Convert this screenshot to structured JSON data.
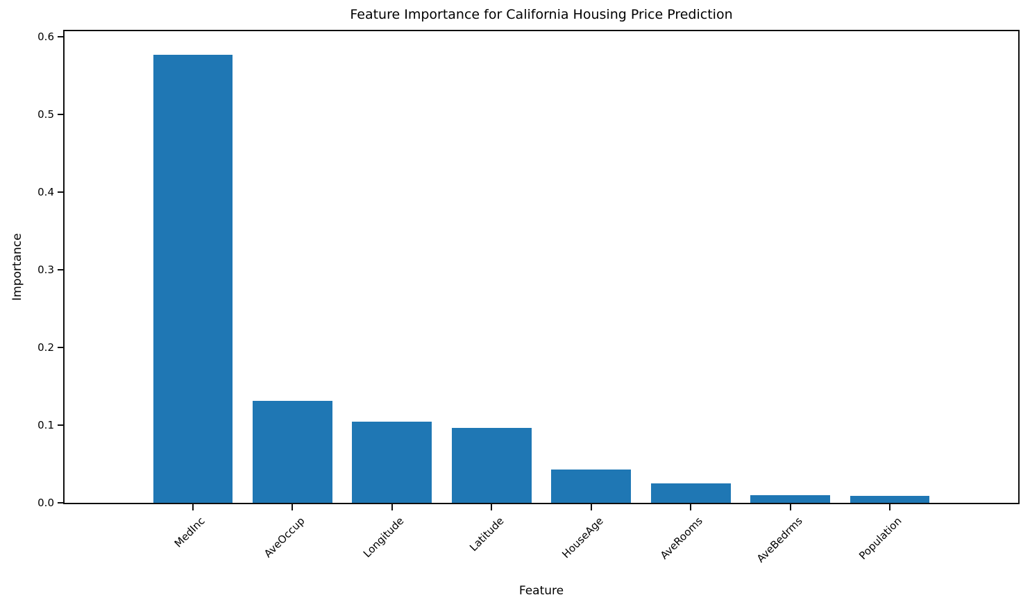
{
  "chart_data": {
    "type": "bar",
    "title": "Feature Importance for California Housing Price Prediction",
    "xlabel": "Feature",
    "ylabel": "Importance",
    "categories": [
      "MedInc",
      "AveOccup",
      "Longitude",
      "Latitude",
      "HouseAge",
      "AveRooms",
      "AveBedrms",
      "Population"
    ],
    "values": [
      0.577,
      0.131,
      0.104,
      0.096,
      0.043,
      0.025,
      0.01,
      0.009
    ],
    "yticks": [
      "0.0",
      "0.1",
      "0.2",
      "0.3",
      "0.4",
      "0.5",
      "0.6"
    ],
    "ylim": [
      0,
      0.607
    ],
    "bar_color": "#1f77b4",
    "x_tick_rotation": 45,
    "grid": false,
    "legend_position": "none"
  }
}
